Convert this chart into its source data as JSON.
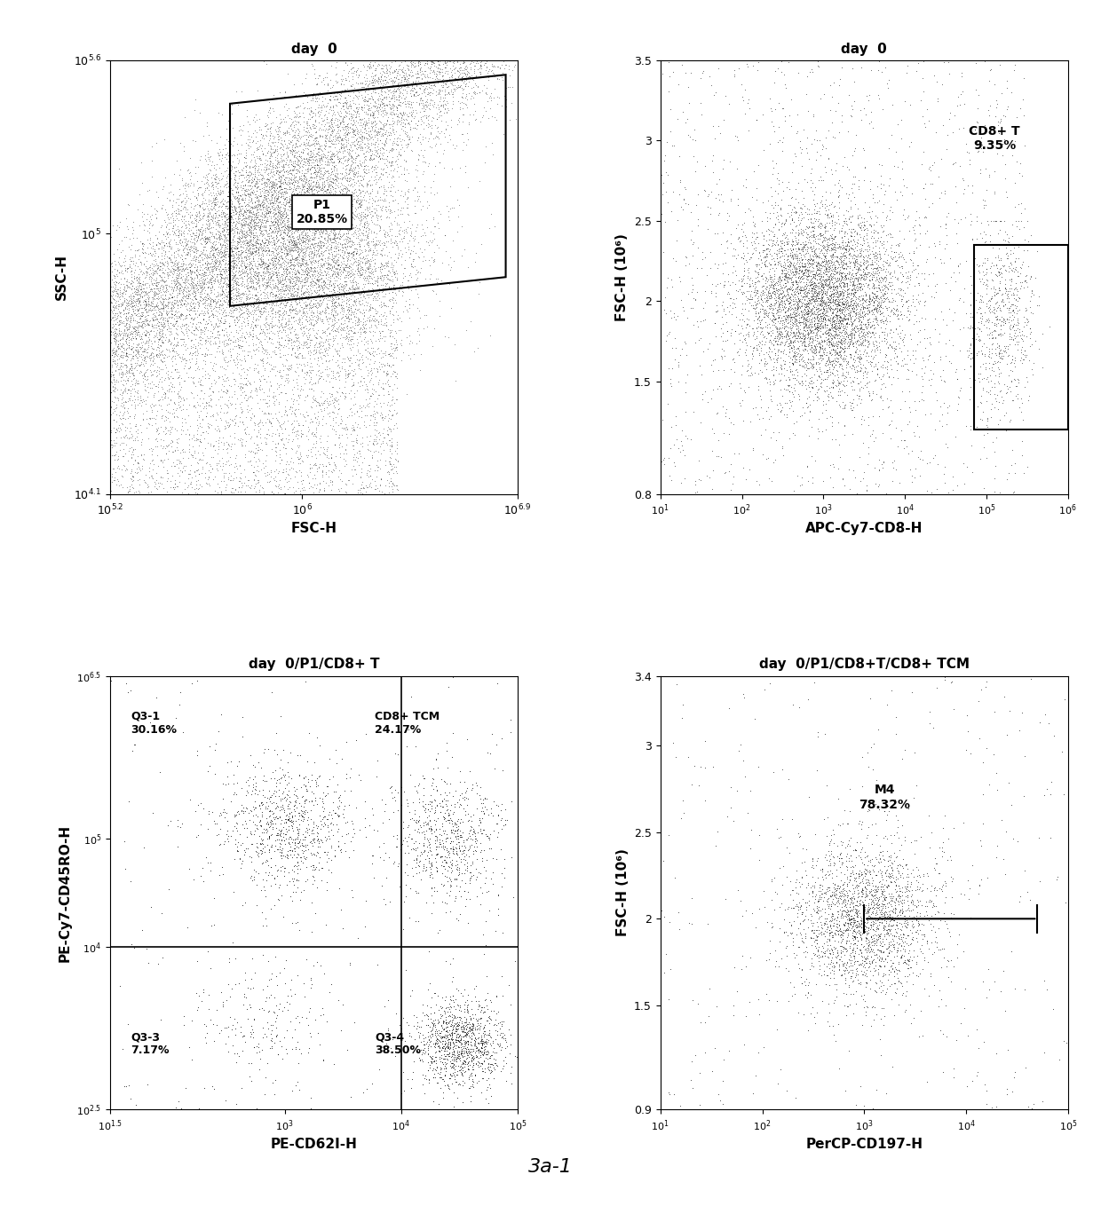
{
  "fig_width": 12.4,
  "fig_height": 13.59,
  "background_color": "#ffffff",
  "tl_title": "day  0",
  "tl_xlabel": "FSC-H",
  "tl_ylabel": "SSC-H",
  "tl_gate_label": "P1\n20.85%",
  "tr_title": "day  0",
  "tr_xlabel": "APC-Cy7-CD8-H",
  "tr_ylabel": "FSC-H (10⁶)",
  "tr_gate_label": "CD8+ T\n9.35%",
  "tr_ylim": [
    0.8,
    3.5
  ],
  "tr_yticks": [
    0.8,
    1.5,
    2.0,
    2.5,
    3.0,
    3.5
  ],
  "tr_ytick_labels": [
    "0.8",
    "1.5",
    "2",
    "2.5",
    "3",
    "3.5"
  ],
  "bl_title": "day  0/P1/CD8+ T",
  "bl_xlabel": "PE-CD62I-H",
  "bl_ylabel": "PE-Cy7-CD45RO-H",
  "bl_q1_label": "Q3-1\n30.16%",
  "bl_q2_label": "CD8+ TCM\n24.17%",
  "bl_q3_label": "Q3-3\n7.17%",
  "bl_q4_label": "Q3-4\n38.50%",
  "br_title": "day  0/P1/CD8+T/CD8+ TCM",
  "br_xlabel": "PerCP-CD197-H",
  "br_ylabel": "FSC-H (10⁶)",
  "br_gate_label": "M4\n78.32%",
  "br_ylim": [
    0.9,
    3.4
  ],
  "br_yticks": [
    0.9,
    1.5,
    2.0,
    2.5,
    3.0,
    3.4
  ],
  "br_ytick_labels": [
    "0.9",
    "1.5",
    "2",
    "2.5",
    "3",
    "3.4"
  ],
  "caption": "3a-1",
  "caption_fontsize": 16
}
